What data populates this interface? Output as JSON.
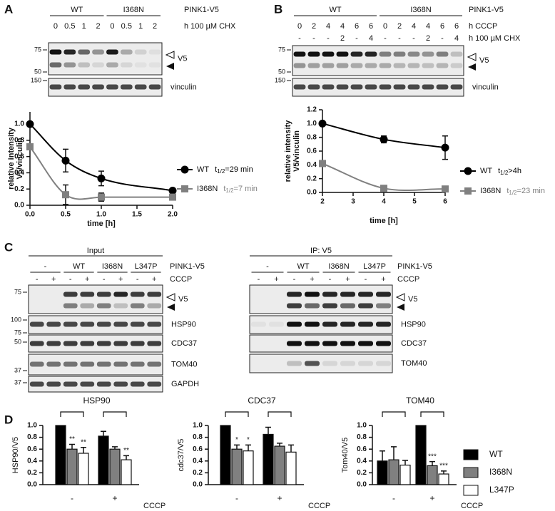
{
  "figure": {
    "panel_labels": [
      "A",
      "B",
      "C",
      "D"
    ],
    "blot_a": {
      "groups": [
        "WT",
        "I368N"
      ],
      "group_title": "PINK1-V5",
      "lanes": [
        "0",
        "0.5",
        "1",
        "2",
        "0",
        "0.5",
        "1",
        "2"
      ],
      "lanes_title": "h 100 µM CHX",
      "markers": [
        "75",
        "50",
        "150"
      ],
      "bands": [
        "V5",
        "vinculin"
      ]
    },
    "blot_b": {
      "groups": [
        "WT",
        "I368N"
      ],
      "group_title": "PINK1-V5",
      "lanes": [
        "0",
        "2",
        "4",
        "4",
        "6",
        "6",
        "0",
        "2",
        "4",
        "4",
        "6",
        "6"
      ],
      "lanes_title": "h CCCP",
      "lanes2": [
        "-",
        "-",
        "-",
        "2",
        "-",
        "4",
        "-",
        "-",
        "-",
        "2",
        "-",
        "4"
      ],
      "lanes2_title": "h 100 µM CHX",
      "markers": [
        "75",
        "50",
        "150"
      ],
      "bands": [
        "V5",
        "vinculin"
      ]
    },
    "blot_c_input": {
      "title": "Input",
      "groups": [
        "-",
        "WT",
        "I368N",
        "L347P"
      ],
      "group_title": "PINK1-V5",
      "lanes": [
        "-",
        "+",
        "-",
        "+",
        "-",
        "+",
        "-",
        "+"
      ],
      "lanes_title": "CCCP",
      "markers": [
        "75",
        "100",
        "75",
        "50",
        "37",
        "37"
      ],
      "bands": [
        "V5",
        "HSP90",
        "CDC37",
        "TOM40",
        "GAPDH"
      ]
    },
    "blot_c_ip": {
      "title": "IP: V5",
      "groups": [
        "-",
        "WT",
        "I368N",
        "L347P"
      ],
      "group_title": "PINK1-V5",
      "lanes": [
        "-",
        "+",
        "-",
        "+",
        "-",
        "+",
        "-",
        "+"
      ],
      "lanes_title": "CCCP",
      "bands": [
        "V5",
        "HSP90",
        "CDC37",
        "TOM40"
      ]
    }
  },
  "chart_data": [
    {
      "type": "line",
      "xlabel": "time [h]",
      "ylabel": [
        "relative intensity",
        "V5/vinculin"
      ],
      "x": [
        0,
        0.5,
        1,
        2
      ],
      "xlim": [
        0,
        2
      ],
      "xticks": [
        {
          "value": 0,
          "label": "0.0"
        },
        0.5,
        {
          "value": 1,
          "label": "1.0"
        },
        1.5,
        {
          "value": 2,
          "label": "2.0"
        }
      ],
      "ylim": [
        0,
        1.15
      ],
      "yticks": [
        {
          "value": 0,
          "label": "0.0"
        },
        0.2,
        0.4,
        0.6,
        0.8,
        {
          "value": 1,
          "label": "1.0"
        }
      ],
      "series": [
        {
          "name": "WT",
          "color": "#000000",
          "marker": "circle",
          "values": [
            1.0,
            0.55,
            0.33,
            0.18
          ],
          "errors": [
            0,
            0.14,
            0.09,
            0.02
          ],
          "annotation": "t1/2=29 min"
        },
        {
          "name": "I368N",
          "color": "#808080",
          "marker": "square",
          "values": [
            0.72,
            0.13,
            0.1,
            0.1
          ],
          "errors": [
            0,
            0.12,
            0.05,
            0.02
          ],
          "annotation": "t1/2=7 min"
        }
      ]
    },
    {
      "type": "line",
      "xlabel": "time [h]",
      "ylabel": [
        "relative intensity",
        "V5/vinculin"
      ],
      "x": [
        2,
        4,
        6
      ],
      "xlim": [
        2,
        6
      ],
      "xticks": [
        2,
        3,
        4,
        5,
        6
      ],
      "ylim": [
        0,
        1.2
      ],
      "yticks": [
        {
          "value": 0,
          "label": "0.0"
        },
        0.2,
        0.4,
        0.6,
        0.8,
        {
          "value": 1,
          "label": "1.0"
        },
        1.2
      ],
      "series": [
        {
          "name": "WT",
          "color": "#000000",
          "marker": "circle",
          "values": [
            1.0,
            0.77,
            0.65
          ],
          "errors": [
            0.02,
            0.05,
            0.17
          ],
          "annotation": "t1/2>4h"
        },
        {
          "name": "I368N",
          "color": "#808080",
          "marker": "square",
          "values": [
            0.42,
            0.06,
            0.05
          ],
          "errors": [
            0.02,
            0.01,
            0.01
          ],
          "annotation": "t1/2=23 min"
        }
      ]
    },
    {
      "type": "bar",
      "title": "HSP90",
      "ylabel": "HSP90/V5",
      "xlabel": "CCCP",
      "categories": [
        "-",
        "+"
      ],
      "ylim": [
        0,
        1
      ],
      "yticks": [
        {
          "value": 0,
          "label": "0.0"
        },
        0.2,
        0.4,
        0.6,
        0.8,
        {
          "value": 1,
          "label": "1.0"
        }
      ],
      "legend": false,
      "series": [
        {
          "name": "WT",
          "color": "#000000",
          "values": [
            1.0,
            0.82
          ],
          "errors": [
            0,
            0.08
          ],
          "significance": [
            null,
            null
          ]
        },
        {
          "name": "I368N",
          "color": "#808080",
          "values": [
            0.6,
            0.6
          ],
          "errors": [
            0.08,
            0.04
          ],
          "significance": [
            "**",
            null
          ]
        },
        {
          "name": "L347P",
          "color": "#ffffff",
          "values": [
            0.53,
            0.42
          ],
          "errors": [
            0.1,
            0.07
          ],
          "significance": [
            "**",
            "**"
          ]
        }
      ]
    },
    {
      "type": "bar",
      "title": "CDC37",
      "ylabel": "cdc37/V5",
      "xlabel": "CCCP",
      "categories": [
        "-",
        "+"
      ],
      "ylim": [
        0,
        1
      ],
      "yticks": [
        {
          "value": 0,
          "label": "0.0"
        },
        0.2,
        0.4,
        0.6,
        0.8,
        {
          "value": 1,
          "label": "1.0"
        }
      ],
      "legend": false,
      "series": [
        {
          "name": "WT",
          "color": "#000000",
          "values": [
            1.0,
            0.85
          ],
          "errors": [
            0,
            0.12
          ],
          "significance": [
            null,
            null
          ]
        },
        {
          "name": "I368N",
          "color": "#808080",
          "values": [
            0.6,
            0.65
          ],
          "errors": [
            0.07,
            0.05
          ],
          "significance": [
            "*",
            null
          ]
        },
        {
          "name": "L347P",
          "color": "#ffffff",
          "values": [
            0.57,
            0.55
          ],
          "errors": [
            0.1,
            0.12
          ],
          "significance": [
            "*",
            null
          ]
        }
      ]
    },
    {
      "type": "bar",
      "title": "TOM40",
      "ylabel": "Tom40/V5",
      "xlabel": "CCCP",
      "categories": [
        "-",
        "+"
      ],
      "ylim": [
        0,
        1
      ],
      "yticks": [
        {
          "value": 0,
          "label": "0.0"
        },
        0.2,
        0.4,
        0.6,
        0.8,
        {
          "value": 1,
          "label": "1.0"
        }
      ],
      "legend": true,
      "series": [
        {
          "name": "WT",
          "color": "#000000",
          "values": [
            0.4,
            1.0
          ],
          "errors": [
            0.17,
            0
          ],
          "significance": [
            null,
            null
          ]
        },
        {
          "name": "I368N",
          "color": "#808080",
          "values": [
            0.42,
            0.32
          ],
          "errors": [
            0.22,
            0.07
          ],
          "significance": [
            null,
            "***"
          ]
        },
        {
          "name": "L347P",
          "color": "#ffffff",
          "values": [
            0.33,
            0.18
          ],
          "errors": [
            0.08,
            0.05
          ],
          "significance": [
            null,
            "***"
          ]
        }
      ]
    }
  ]
}
